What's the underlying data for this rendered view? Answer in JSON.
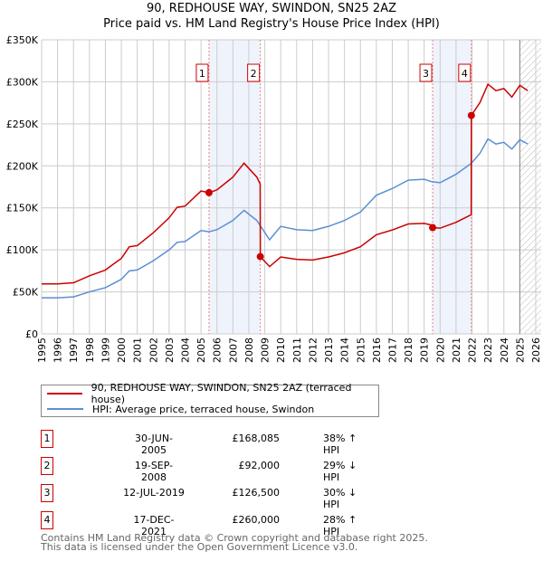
{
  "title": "90, REDHOUSE WAY, SWINDON, SN25 2AZ",
  "subtitle": "Price paid vs. HM Land Registry's House Price Index (HPI)",
  "chart_data": {
    "type": "line",
    "title": "90, REDHOUSE WAY, SWINDON, SN25 2AZ",
    "subtitle": "Price paid vs. HM Land Registry's House Price Index (HPI)",
    "ylim": [
      0,
      350000
    ],
    "xlim": [
      1995,
      2026
    ],
    "ytick_labels": [
      "£0",
      "£50K",
      "£100K",
      "£150K",
      "£200K",
      "£250K",
      "£300K",
      "£350K"
    ],
    "yticks": [
      0,
      50000,
      100000,
      150000,
      200000,
      250000,
      300000,
      350000
    ],
    "xticks": [
      1995,
      1996,
      1997,
      1998,
      1999,
      2000,
      2001,
      2002,
      2003,
      2004,
      2005,
      2006,
      2007,
      2008,
      2009,
      2010,
      2011,
      2012,
      2013,
      2014,
      2015,
      2016,
      2017,
      2018,
      2019,
      2020,
      2021,
      2022,
      2023,
      2024,
      2025,
      2026
    ],
    "legend": [
      "90, REDHOUSE WAY, SWINDON, SN25 2AZ (terraced house)",
      "HPI: Average price, terraced house, Swindon"
    ],
    "colors": {
      "property": "#cc0000",
      "hpi": "#5b8fd4"
    },
    "hpi": {
      "x": [
        1995,
        1996,
        1997,
        1998,
        1999,
        2000,
        2000.5,
        2001,
        2002,
        2003,
        2003.5,
        2004,
        2005,
        2005.5,
        2006,
        2007,
        2007.7,
        2008.5,
        2009.3,
        2010,
        2011,
        2012,
        2013,
        2014,
        2015,
        2016,
        2017,
        2018,
        2019,
        2019.5,
        2020,
        2021,
        2021.96,
        2022.5,
        2023,
        2023.5,
        2024,
        2024.5,
        2025,
        2025.5
      ],
      "y": [
        43000,
        43000,
        44000,
        50000,
        55000,
        65000,
        75000,
        76000,
        87000,
        100000,
        109000,
        110000,
        123000,
        121600,
        124000,
        135000,
        147000,
        135000,
        112000,
        128000,
        124000,
        123000,
        128000,
        135000,
        145000,
        165000,
        173000,
        183000,
        184000,
        181000,
        180000,
        190000,
        203000,
        215000,
        232000,
        226000,
        228000,
        220000,
        231000,
        226000
      ]
    },
    "sales": [
      {
        "n": "1",
        "x": 2005.5,
        "date": "30-JUN-2005",
        "price": 168085,
        "price_label": "£168,085",
        "hpi": "38% ↑ HPI"
      },
      {
        "n": "2",
        "x": 2008.72,
        "date": "19-SEP-2008",
        "price": 92000,
        "price_label": "£92,000",
        "hpi": "29% ↓ HPI"
      },
      {
        "n": "3",
        "x": 2019.53,
        "date": "12-JUL-2019",
        "price": 126500,
        "price_label": "£126,500",
        "hpi": "30% ↓ HPI"
      },
      {
        "n": "4",
        "x": 2021.96,
        "date": "17-DEC-2021",
        "price": 260000,
        "price_label": "£260,000",
        "hpi": "28% ↑ HPI"
      }
    ],
    "shaded_ranges": [
      [
        2005.5,
        2008.72
      ],
      [
        2019.53,
        2021.96
      ]
    ],
    "forecast_hatch_from": 2025
  },
  "footer": [
    "Contains HM Land Registry data © Crown copyright and database right 2025.",
    "This data is licensed under the Open Government Licence v3.0."
  ]
}
